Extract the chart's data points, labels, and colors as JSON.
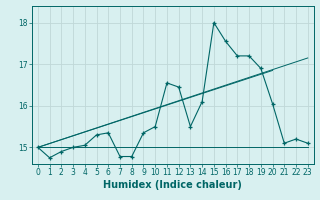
{
  "title": "",
  "xlabel": "Humidex (Indice chaleur)",
  "bg_color": "#d8f0f0",
  "grid_color": "#c0d8d8",
  "line_color": "#006666",
  "xlim": [
    -0.5,
    23.5
  ],
  "ylim": [
    14.6,
    18.4
  ],
  "yticks": [
    15,
    16,
    17,
    18
  ],
  "xticks": [
    0,
    1,
    2,
    3,
    4,
    5,
    6,
    7,
    8,
    9,
    10,
    11,
    12,
    13,
    14,
    15,
    16,
    17,
    18,
    19,
    20,
    21,
    22,
    23
  ],
  "main_x": [
    0,
    1,
    2,
    3,
    4,
    5,
    6,
    7,
    8,
    9,
    10,
    11,
    12,
    13,
    14,
    15,
    16,
    17,
    18,
    19,
    20,
    21,
    22,
    23
  ],
  "main_y": [
    15.0,
    14.75,
    14.9,
    15.0,
    15.05,
    15.3,
    15.35,
    14.78,
    14.78,
    15.35,
    15.5,
    16.55,
    16.45,
    15.5,
    16.1,
    18.0,
    17.55,
    17.2,
    17.2,
    16.9,
    16.05,
    15.1,
    15.2,
    15.1
  ],
  "line1_x": [
    0,
    23
  ],
  "line1_y": [
    15.0,
    17.15
  ],
  "line2_x": [
    0,
    20
  ],
  "line2_y": [
    15.0,
    16.85
  ],
  "line3_x": [
    0,
    23
  ],
  "line3_y": [
    15.0,
    15.0
  ],
  "xlabel_fontsize": 7,
  "tick_fontsize": 5.5,
  "ylabel_fontsize": 6
}
